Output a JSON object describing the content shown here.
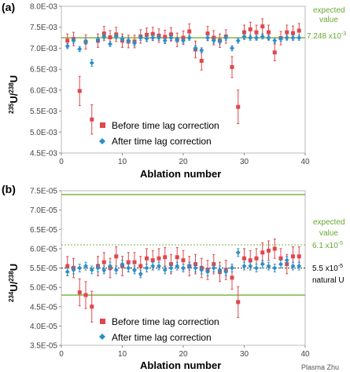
{
  "chart_data": [
    {
      "type": "scatter",
      "panel_label": "(a)",
      "ylabel_base": "U/",
      "ylabel_sup1": "235",
      "ylabel_sup2": "238",
      "ylabel_tail": "U",
      "xlabel": "Ablation number",
      "xlim": [
        0,
        40
      ],
      "ylim": [
        0.0045,
        0.008
      ],
      "x_ticks": [
        0,
        10,
        20,
        30,
        40
      ],
      "y_ticks": [
        0.0045,
        0.005,
        0.0055,
        0.006,
        0.0065,
        0.007,
        0.0075,
        0.008
      ],
      "y_tick_labels": [
        "4.5E-03",
        "5.0E-03",
        "5.5E-03",
        "6.0E-03",
        "6.5E-03",
        "7.0E-03",
        "7.5E-03",
        "8.0E-03"
      ],
      "x_tick_labels": [
        "0",
        "10",
        "20",
        "30",
        "40"
      ],
      "reference_lines": [
        {
          "y": 0.007248,
          "style": "solid",
          "color": "#7ab648"
        }
      ],
      "annotations": {
        "expected_line1": "expected",
        "expected_line2": "value",
        "expected_value": "7.248 x10",
        "expected_sup": "-3"
      },
      "legend": [
        "Before time lag correction",
        "After time lag correction"
      ],
      "series": [
        {
          "name": "Before time lag correction",
          "color": "#e0474c",
          "marker": "square",
          "x": [
            1,
            2,
            3,
            4,
            5,
            6,
            7,
            8,
            9,
            10,
            11,
            12,
            13,
            14,
            15,
            16,
            17,
            18,
            19,
            20,
            21,
            22,
            23,
            24,
            25,
            26,
            27,
            28,
            29,
            30,
            31,
            32,
            33,
            34,
            35,
            36,
            37,
            38,
            39
          ],
          "y": [
            0.00718,
            0.00722,
            0.00598,
            0.00715,
            0.0053,
            0.00718,
            0.00735,
            0.00726,
            0.00733,
            0.00718,
            0.00716,
            0.00716,
            0.00728,
            0.00732,
            0.00734,
            0.0073,
            0.00727,
            0.00733,
            0.0072,
            0.00725,
            0.0074,
            0.00697,
            0.0067,
            0.00735,
            0.00725,
            0.00718,
            0.00728,
            0.00655,
            0.0056,
            0.00738,
            0.00745,
            0.00738,
            0.00752,
            0.00738,
            0.0069,
            0.00724,
            0.00738,
            0.00736,
            0.00742
          ],
          "err": [
            0.00016,
            0.00016,
            0.00035,
            0.00017,
            0.00035,
            0.00016,
            0.00017,
            0.00016,
            0.00017,
            0.00016,
            0.00015,
            0.00015,
            0.00016,
            0.00016,
            0.00016,
            0.00016,
            0.00016,
            0.00016,
            0.00016,
            0.00016,
            0.00018,
            0.0002,
            0.00022,
            0.00017,
            0.00017,
            0.00016,
            0.00016,
            0.00025,
            0.0004,
            0.00017,
            0.00017,
            0.00017,
            0.00018,
            0.00017,
            0.0002,
            0.00016,
            0.00017,
            0.00017,
            0.00017
          ]
        },
        {
          "name": "After time lag correction",
          "color": "#2b8fc8",
          "marker": "diamond",
          "x": [
            1,
            2,
            3,
            4,
            5,
            6,
            7,
            8,
            9,
            10,
            11,
            12,
            13,
            14,
            15,
            16,
            17,
            18,
            19,
            20,
            21,
            22,
            23,
            24,
            25,
            26,
            27,
            28,
            29,
            30,
            31,
            32,
            33,
            34,
            35,
            36,
            37,
            38,
            39
          ],
          "y": [
            0.00705,
            0.00718,
            0.00698,
            0.00715,
            0.00665,
            0.0072,
            0.00728,
            0.0071,
            0.00728,
            0.00722,
            0.00718,
            0.00712,
            0.00725,
            0.00723,
            0.00725,
            0.00725,
            0.00718,
            0.00725,
            0.0072,
            0.00718,
            0.00725,
            0.007,
            0.00695,
            0.00725,
            0.00718,
            0.00716,
            0.00725,
            0.007,
            0.00718,
            0.00728,
            0.00725,
            0.00725,
            0.00728,
            0.00725,
            0.00718,
            0.00722,
            0.00725,
            0.00725,
            0.00725
          ],
          "err": [
            6e-05,
            6e-05,
            6e-05,
            6e-05,
            8e-05,
            6e-05,
            6e-05,
            6e-05,
            6e-05,
            6e-05,
            6e-05,
            6e-05,
            6e-05,
            6e-05,
            6e-05,
            6e-05,
            6e-05,
            6e-05,
            6e-05,
            6e-05,
            6e-05,
            6e-05,
            6e-05,
            6e-05,
            6e-05,
            6e-05,
            6e-05,
            6e-05,
            6e-05,
            6e-05,
            6e-05,
            6e-05,
            6e-05,
            6e-05,
            6e-05,
            6e-05,
            6e-05,
            6e-05,
            6e-05
          ]
        }
      ]
    },
    {
      "type": "scatter",
      "panel_label": "(b)",
      "ylabel_base": "U/",
      "ylabel_sup1": "234",
      "ylabel_sup2": "238",
      "ylabel_tail": "U",
      "xlabel": "Ablation number",
      "xlim": [
        0,
        40
      ],
      "ylim": [
        3.5e-05,
        7.5e-05
      ],
      "x_ticks": [
        0,
        10,
        20,
        30,
        40
      ],
      "y_ticks": [
        3.5e-05,
        4e-05,
        4.5e-05,
        5e-05,
        5.5e-05,
        6e-05,
        6.5e-05,
        7e-05,
        7.5e-05
      ],
      "y_tick_labels": [
        "3.5E-05",
        "4.0E-05",
        "4.5E-05",
        "5.0E-05",
        "5.5E-05",
        "6.0E-05",
        "6.5E-05",
        "7.0E-05",
        "7.5E-05"
      ],
      "x_tick_labels": [
        "0",
        "10",
        "20",
        "30",
        "40"
      ],
      "reference_lines": [
        {
          "y": 7.4e-05,
          "style": "solid",
          "color": "#7ab648"
        },
        {
          "y": 6.1e-05,
          "style": "dotted",
          "color": "#7ab648"
        },
        {
          "y": 5.5e-05,
          "style": "dotted",
          "color": "#333333"
        },
        {
          "y": 4.8e-05,
          "style": "solid",
          "color": "#7ab648"
        }
      ],
      "annotations": {
        "expected_line1": "expected",
        "expected_line2": "value",
        "expected_value": "6.1 x10",
        "expected_sup": "-5",
        "natural_value": "5.5 x10",
        "natural_sup": "-5",
        "natural_label": "natural U"
      },
      "legend": [
        "Before time lag correction",
        "After time lag correction"
      ],
      "series": [
        {
          "name": "Before time lag correction",
          "color": "#e0474c",
          "marker": "square",
          "x": [
            1,
            2,
            3,
            4,
            5,
            6,
            7,
            8,
            9,
            10,
            11,
            12,
            13,
            14,
            15,
            16,
            17,
            18,
            19,
            20,
            21,
            22,
            23,
            24,
            25,
            26,
            27,
            28,
            29,
            30,
            31,
            32,
            33,
            34,
            35,
            36,
            37,
            38,
            39
          ],
          "y": [
            5.55e-05,
            5.5e-05,
            4.87e-05,
            4.8e-05,
            4.5e-05,
            5.55e-05,
            5.65e-05,
            5.5e-05,
            5.8e-05,
            5.55e-05,
            5.65e-05,
            5.65e-05,
            5.55e-05,
            5.75e-05,
            5.7e-05,
            5.75e-05,
            5.78e-05,
            5.6e-05,
            5.78e-05,
            5.7e-05,
            5.55e-05,
            5.6e-05,
            5.5e-05,
            5.45e-05,
            5.6e-05,
            5.4e-05,
            5.45e-05,
            5.25e-05,
            4.62e-05,
            5.75e-05,
            5.7e-05,
            5.75e-05,
            5.9e-05,
            5.95e-05,
            6e-05,
            5.75e-05,
            5.6e-05,
            5.8e-05,
            5.8e-05
          ],
          "err": [
            2.5e-06,
            2.5e-06,
            3.5e-06,
            3.5e-06,
            4e-06,
            2.5e-06,
            2.5e-06,
            2.5e-06,
            2.5e-06,
            2.5e-06,
            2.5e-06,
            2.5e-06,
            2.5e-06,
            2.5e-06,
            2.5e-06,
            2.5e-06,
            2.5e-06,
            2.5e-06,
            2.5e-06,
            2.5e-06,
            2.5e-06,
            2.5e-06,
            2.5e-06,
            2.5e-06,
            2.5e-06,
            2.5e-06,
            2.5e-06,
            3e-06,
            4e-06,
            2.5e-06,
            2.5e-06,
            2.5e-06,
            2.5e-06,
            2.5e-06,
            2.5e-06,
            2.5e-06,
            2.5e-06,
            2.5e-06,
            2.5e-06
          ]
        },
        {
          "name": "After time lag correction",
          "color": "#2b8fc8",
          "marker": "diamond",
          "x": [
            1,
            2,
            3,
            4,
            5,
            6,
            7,
            8,
            9,
            10,
            11,
            12,
            13,
            14,
            15,
            16,
            17,
            18,
            19,
            20,
            21,
            22,
            23,
            24,
            25,
            26,
            27,
            28,
            29,
            30,
            31,
            32,
            33,
            34,
            35,
            36,
            37,
            38,
            39
          ],
          "y": [
            5.4e-05,
            5.45e-05,
            5.5e-05,
            5.55e-05,
            5.45e-05,
            5.5e-05,
            5.45e-05,
            5.55e-05,
            5.45e-05,
            5.6e-05,
            5.5e-05,
            5.45e-05,
            5.35e-05,
            5.5e-05,
            5.55e-05,
            5.55e-05,
            5.45e-05,
            5.5e-05,
            5.55e-05,
            5.5e-05,
            5.55e-05,
            5.5e-05,
            5.45e-05,
            5.4e-05,
            5.5e-05,
            5.45e-05,
            5.4e-05,
            5.5e-05,
            5.9e-05,
            5.55e-05,
            5.55e-05,
            5.5e-05,
            5.6e-05,
            5.55e-05,
            5.5e-05,
            5.6e-05,
            5.7e-05,
            5.55e-05,
            5.55e-05
          ],
          "err": [
            1e-06,
            1e-06,
            1e-06,
            1e-06,
            1e-06,
            1e-06,
            1e-06,
            1e-06,
            1e-06,
            1e-06,
            1e-06,
            1e-06,
            1e-06,
            1e-06,
            1e-06,
            1e-06,
            1e-06,
            1e-06,
            1e-06,
            1e-06,
            1e-06,
            1e-06,
            1e-06,
            1e-06,
            1e-06,
            1e-06,
            1e-06,
            1e-06,
            1e-06,
            1e-06,
            1e-06,
            1e-06,
            1e-06,
            1e-06,
            1e-06,
            1e-06,
            1e-06,
            1e-06,
            1e-06
          ]
        }
      ]
    }
  ],
  "watermark": "Plasma Zhu"
}
